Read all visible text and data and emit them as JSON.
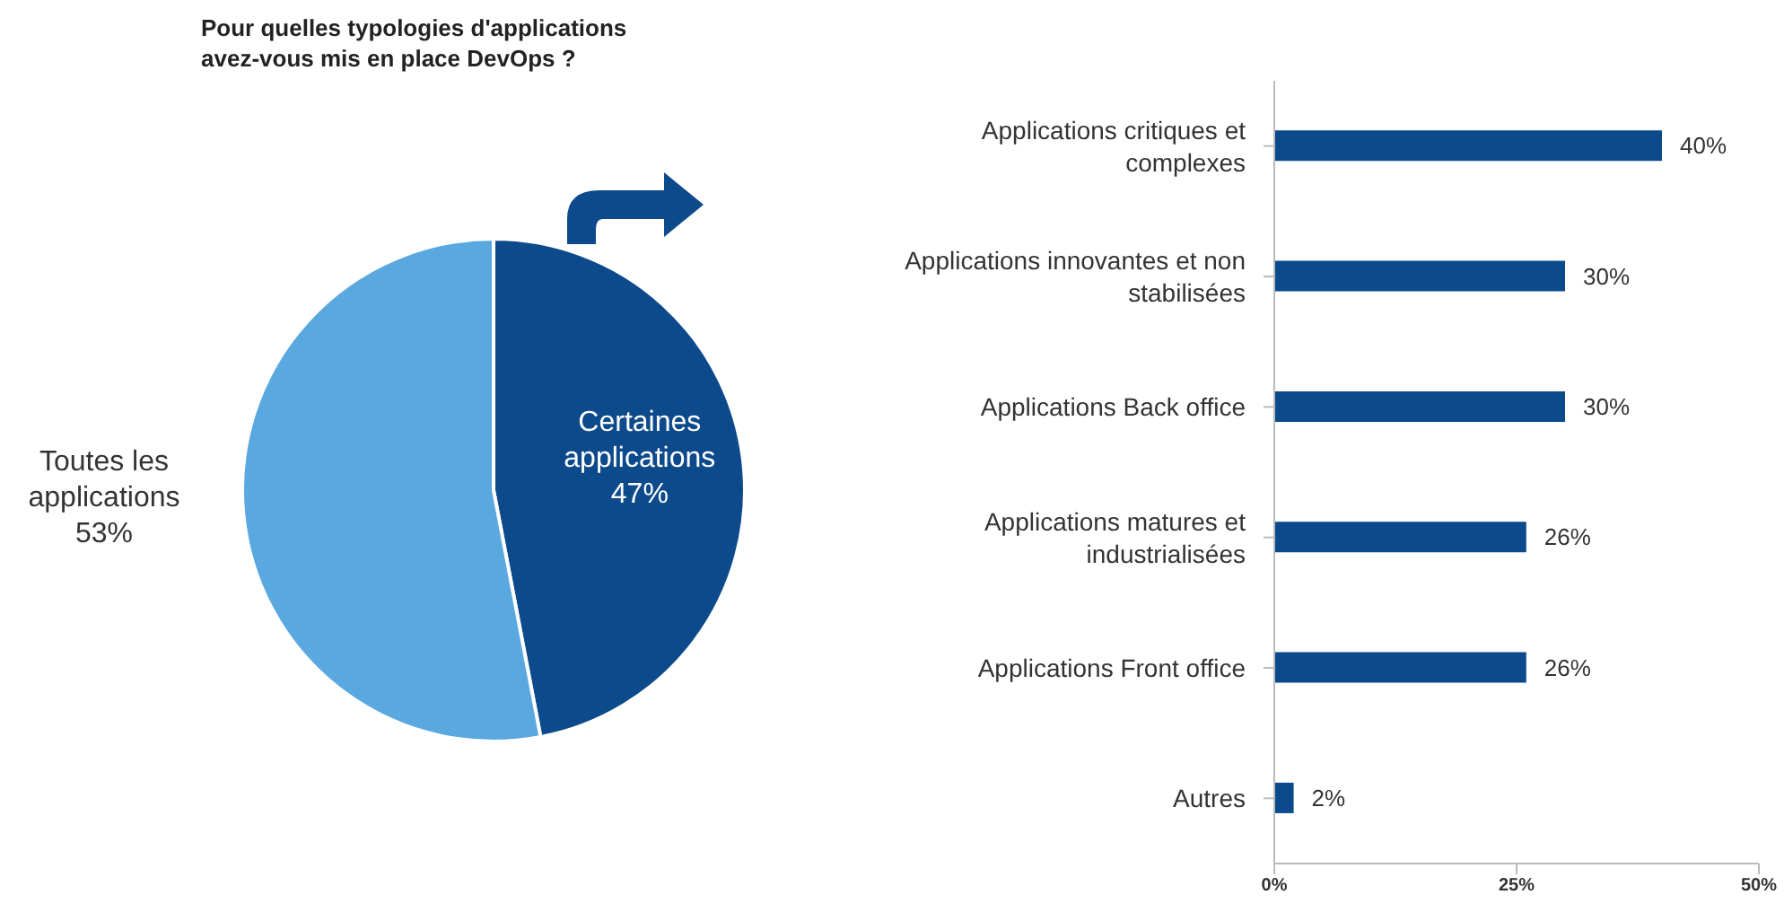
{
  "chart_data": [
    {
      "type": "pie",
      "title": "Pour quelles typologies d'applications avez-vous mis en place DevOps ?",
      "categories": [
        "Certaines applications",
        "Toutes les applications"
      ],
      "values": [
        47,
        53
      ],
      "colors": [
        "#0d4a8c",
        "#5aa8e0"
      ],
      "value_labels": [
        "47%",
        "53%"
      ]
    },
    {
      "type": "bar",
      "orientation": "horizontal",
      "categories": [
        "Applications critiques et complexes",
        "Applications innovantes et non stabilisées",
        "Applications Back office",
        "Applications matures et industrialisées",
        "Applications Front office",
        "Autres"
      ],
      "values": [
        40,
        30,
        30,
        26,
        26,
        2
      ],
      "color": "#0d4a8c",
      "value_labels": [
        "40%",
        "30%",
        "30%",
        "26%",
        "26%",
        "2%"
      ],
      "xlim": [
        0,
        50
      ],
      "xticks": [
        {
          "value": 0,
          "label": "0%"
        },
        {
          "value": 25,
          "label": "25%"
        },
        {
          "value": 50,
          "label": "50%"
        }
      ],
      "grid": false
    }
  ]
}
